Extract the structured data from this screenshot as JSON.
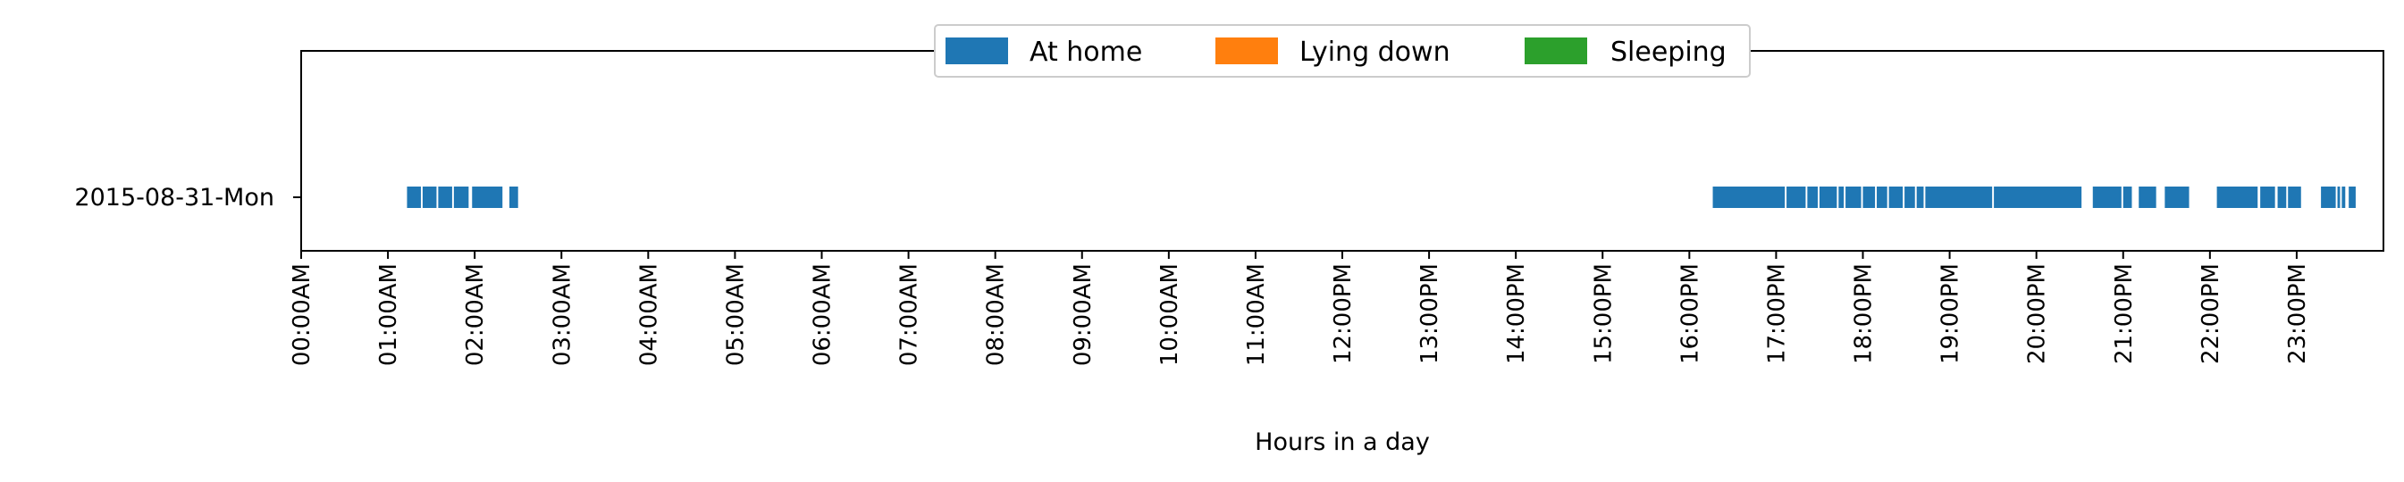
{
  "chart_data": {
    "type": "timeline",
    "xlabel": "Hours in a day",
    "ylabel": "",
    "title": "",
    "xlim": [
      0,
      24
    ],
    "grid": false,
    "legend_placement": "upper center",
    "categories": [
      "2015-08-31-Mon"
    ],
    "x_ticks": [
      {
        "value": 0,
        "label": "00:00AM"
      },
      {
        "value": 1,
        "label": "01:00AM"
      },
      {
        "value": 2,
        "label": "02:00AM"
      },
      {
        "value": 3,
        "label": "03:00AM"
      },
      {
        "value": 4,
        "label": "04:00AM"
      },
      {
        "value": 5,
        "label": "05:00AM"
      },
      {
        "value": 6,
        "label": "06:00AM"
      },
      {
        "value": 7,
        "label": "07:00AM"
      },
      {
        "value": 8,
        "label": "08:00AM"
      },
      {
        "value": 9,
        "label": "09:00AM"
      },
      {
        "value": 10,
        "label": "10:00AM"
      },
      {
        "value": 11,
        "label": "11:00AM"
      },
      {
        "value": 12,
        "label": "12:00PM"
      },
      {
        "value": 13,
        "label": "13:00PM"
      },
      {
        "value": 14,
        "label": "14:00PM"
      },
      {
        "value": 15,
        "label": "15:00PM"
      },
      {
        "value": 16,
        "label": "16:00PM"
      },
      {
        "value": 17,
        "label": "17:00PM"
      },
      {
        "value": 18,
        "label": "18:00PM"
      },
      {
        "value": 19,
        "label": "19:00PM"
      },
      {
        "value": 20,
        "label": "20:00PM"
      },
      {
        "value": 21,
        "label": "21:00PM"
      },
      {
        "value": 22,
        "label": "22:00PM"
      },
      {
        "value": 23,
        "label": "23:00PM"
      }
    ],
    "series": [
      {
        "name": "At home",
        "color": "#1f77b4",
        "category": "2015-08-31-Mon",
        "intervals": [
          [
            1.22,
            1.38
          ],
          [
            1.4,
            1.56
          ],
          [
            1.58,
            1.74
          ],
          [
            1.76,
            1.93
          ],
          [
            1.97,
            2.32
          ],
          [
            2.4,
            2.5
          ],
          [
            16.27,
            17.1
          ],
          [
            17.12,
            17.34
          ],
          [
            17.36,
            17.48
          ],
          [
            17.5,
            17.7
          ],
          [
            17.72,
            17.78
          ],
          [
            17.8,
            17.98
          ],
          [
            18.0,
            18.14
          ],
          [
            18.16,
            18.28
          ],
          [
            18.3,
            18.46
          ],
          [
            18.48,
            18.6
          ],
          [
            18.62,
            18.7
          ],
          [
            18.72,
            19.49
          ],
          [
            19.51,
            20.52
          ],
          [
            20.65,
            20.98
          ],
          [
            21.0,
            21.1
          ],
          [
            21.18,
            21.38
          ],
          [
            21.48,
            21.76
          ],
          [
            22.08,
            22.55
          ],
          [
            22.58,
            22.75
          ],
          [
            22.78,
            22.88
          ],
          [
            22.9,
            23.05
          ],
          [
            23.28,
            23.45
          ],
          [
            23.47,
            23.5
          ],
          [
            23.52,
            23.56
          ],
          [
            23.6,
            23.68
          ]
        ]
      },
      {
        "name": "Lying down",
        "color": "#ff7f0e",
        "category": "2015-08-31-Mon",
        "intervals": []
      },
      {
        "name": "Sleeping",
        "color": "#2ca02c",
        "category": "2015-08-31-Mon",
        "intervals": []
      }
    ]
  }
}
